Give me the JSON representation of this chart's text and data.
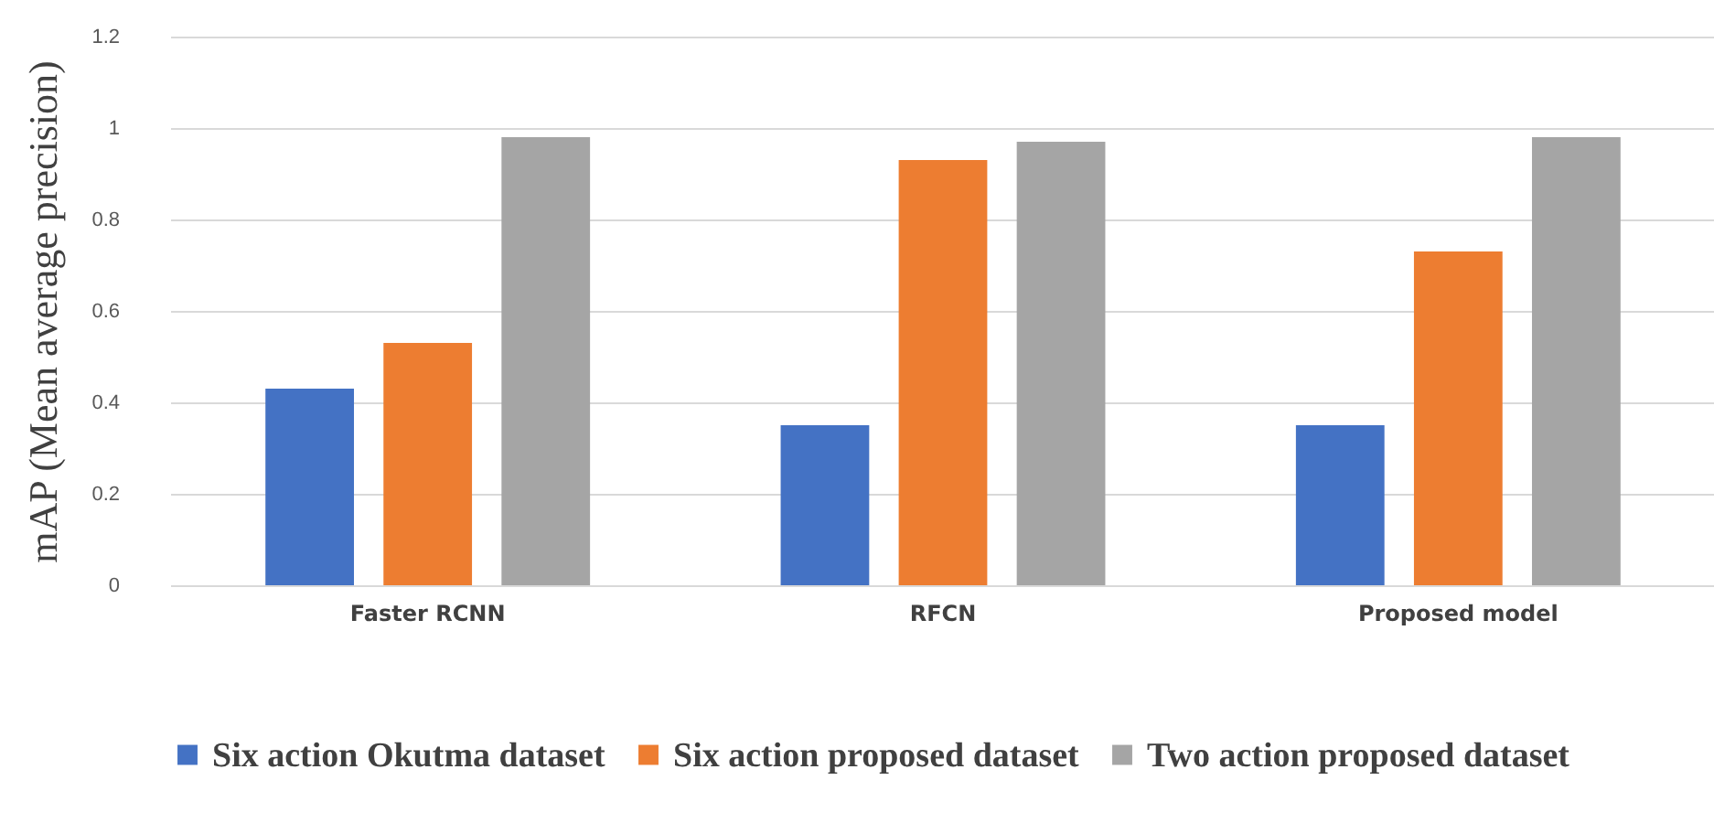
{
  "chart_data": {
    "type": "bar",
    "ylabel": "mAP (Mean average precision)",
    "categories": [
      "Faster RCNN",
      "RFCN",
      "Proposed model"
    ],
    "series": [
      {
        "name": "Six action Okutma dataset",
        "color": "#4472c4",
        "values": [
          0.43,
          0.35,
          0.35
        ]
      },
      {
        "name": "Six action proposed dataset",
        "color": "#ed7d31",
        "values": [
          0.53,
          0.93,
          0.73
        ]
      },
      {
        "name": "Two action proposed dataset",
        "color": "#a5a5a5",
        "values": [
          0.98,
          0.97,
          0.98
        ]
      }
    ],
    "ylim": [
      0,
      1.2
    ],
    "yticks": [
      0,
      0.2,
      0.4,
      0.6,
      0.8,
      1,
      1.2
    ],
    "grid": "y",
    "legend": "bottom"
  }
}
